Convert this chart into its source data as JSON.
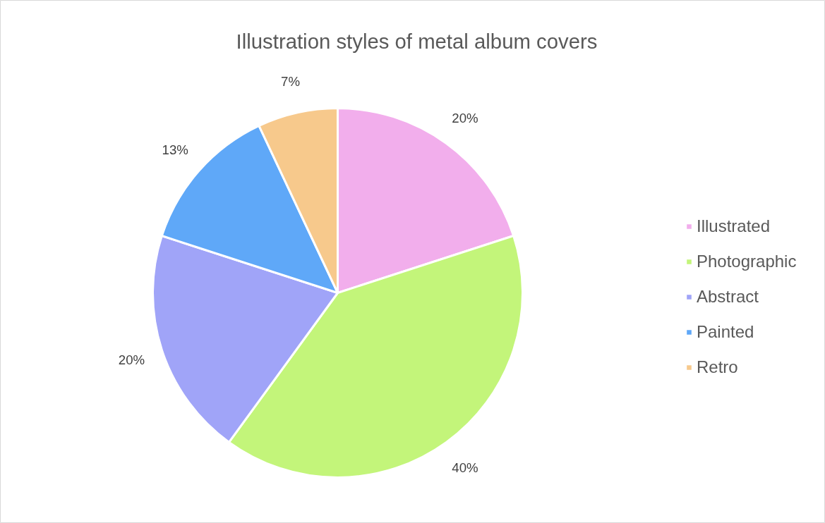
{
  "chart_data": {
    "type": "pie",
    "title": "Illustration styles of metal album covers",
    "categories": [
      "Illustrated",
      "Photographic",
      "Abstract",
      "Painted",
      "Retro"
    ],
    "values": [
      20,
      40,
      20,
      13,
      7
    ],
    "colors": [
      "#f2aeec",
      "#c3f57a",
      "#a0a4f8",
      "#5fa8f8",
      "#f7c98c"
    ],
    "value_labels": [
      "20%",
      "40%",
      "20%",
      "13%",
      "7%"
    ],
    "legend": "right"
  }
}
